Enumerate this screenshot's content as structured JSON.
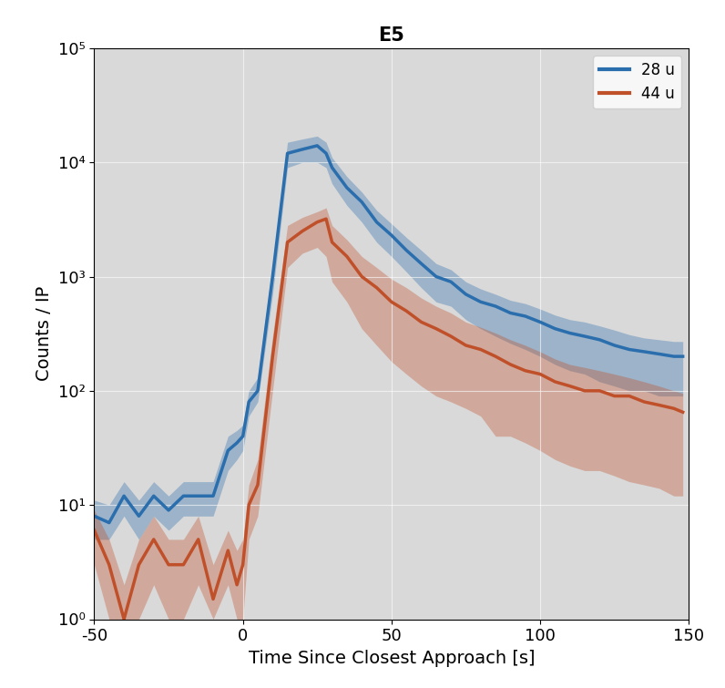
{
  "chart_data": {
    "type": "line",
    "title": "E5",
    "x_label": "Time Since Closest Approach [s]",
    "y_label": "Counts / IP",
    "x": [
      -50,
      -45,
      -40,
      -35,
      -30,
      -25,
      -20,
      -15,
      -10,
      -5,
      -2,
      0,
      2,
      5,
      10,
      15,
      20,
      25,
      28,
      30,
      35,
      40,
      45,
      50,
      55,
      60,
      65,
      70,
      75,
      80,
      85,
      90,
      95,
      100,
      105,
      110,
      115,
      120,
      125,
      130,
      135,
      140,
      145,
      148
    ],
    "series": [
      {
        "name": "28 u",
        "color": "#2a6ead",
        "values": [
          8,
          7,
          12,
          8,
          12,
          9,
          12,
          12,
          12,
          30,
          35,
          40,
          80,
          100,
          1000,
          12000,
          13000,
          14000,
          12000,
          9000,
          6000,
          4500,
          3000,
          2300,
          1700,
          1300,
          1000,
          900,
          700,
          600,
          550,
          480,
          450,
          400,
          350,
          320,
          300,
          280,
          250,
          230,
          220,
          210,
          200,
          200
        ],
        "lower": [
          5,
          5,
          8,
          5,
          8,
          6,
          8,
          8,
          8,
          20,
          25,
          30,
          60,
          80,
          700,
          9000,
          10000,
          10000,
          9000,
          6500,
          4200,
          3000,
          2000,
          1500,
          1100,
          800,
          600,
          550,
          420,
          350,
          300,
          260,
          230,
          200,
          170,
          150,
          140,
          120,
          110,
          100,
          100,
          90,
          90,
          90
        ],
        "upper": [
          11,
          10,
          16,
          11,
          16,
          12,
          16,
          16,
          16,
          40,
          45,
          50,
          100,
          130,
          1300,
          15000,
          16000,
          17000,
          15000,
          11000,
          7500,
          5500,
          3800,
          2900,
          2200,
          1700,
          1300,
          1150,
          900,
          780,
          700,
          620,
          580,
          520,
          460,
          420,
          400,
          370,
          340,
          310,
          290,
          280,
          270,
          270
        ]
      },
      {
        "name": "44 u",
        "color": "#c0502a",
        "values": [
          6,
          3,
          1,
          3,
          5,
          3,
          3,
          5,
          1.5,
          4,
          2,
          3,
          10,
          15,
          200,
          2000,
          2500,
          3000,
          3200,
          2000,
          1500,
          1000,
          800,
          600,
          500,
          400,
          350,
          300,
          250,
          230,
          200,
          170,
          150,
          140,
          120,
          110,
          100,
          100,
          90,
          90,
          80,
          75,
          70,
          65
        ],
        "lower": [
          3,
          1,
          1,
          1,
          2,
          1,
          1,
          2,
          1,
          2,
          1,
          1,
          5,
          8,
          100,
          1200,
          1600,
          1800,
          1500,
          900,
          600,
          350,
          250,
          180,
          140,
          110,
          90,
          80,
          70,
          60,
          40,
          40,
          35,
          30,
          25,
          22,
          20,
          20,
          18,
          16,
          15,
          14,
          12,
          12
        ],
        "upper": [
          9,
          5,
          2,
          5,
          8,
          5,
          5,
          8,
          3,
          6,
          4,
          5,
          15,
          25,
          300,
          2800,
          3300,
          3700,
          4000,
          2800,
          2100,
          1500,
          1200,
          950,
          800,
          650,
          550,
          480,
          400,
          360,
          320,
          280,
          250,
          220,
          190,
          170,
          160,
          150,
          140,
          130,
          120,
          110,
          100,
          95
        ]
      }
    ],
    "xlim": [
      -50,
      150
    ],
    "xticks": [
      -50,
      0,
      50,
      100,
      150
    ],
    "ylim": [
      1,
      100000
    ],
    "yticks": [
      {
        "value": 1,
        "label": "10⁰"
      },
      {
        "value": 10,
        "label": "10¹"
      },
      {
        "value": 100,
        "label": "10²"
      },
      {
        "value": 1000,
        "label": "10³"
      },
      {
        "value": 10000,
        "label": "10⁴"
      },
      {
        "value": 100000,
        "label": "10⁵"
      }
    ],
    "log": "y",
    "grid": true,
    "legend": "upper right"
  }
}
